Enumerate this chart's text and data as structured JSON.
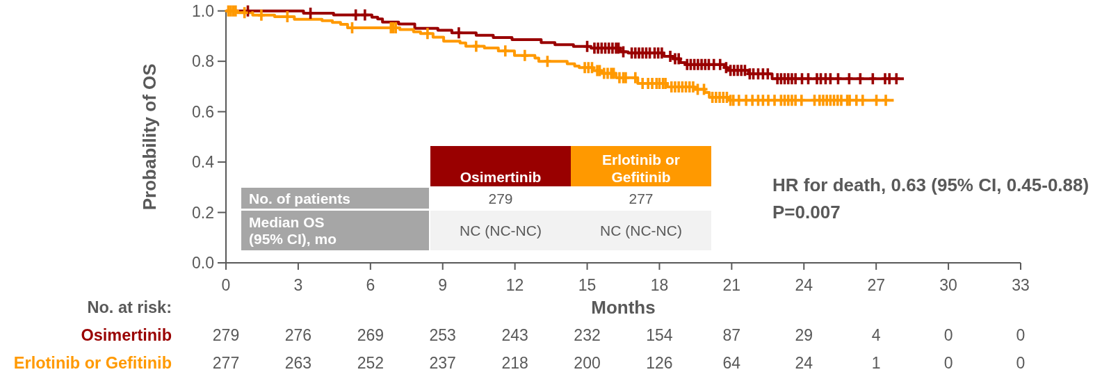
{
  "chart_data": [
    {
      "type": "step",
      "xlabel": "Months",
      "ylabel": "Probability of OS",
      "xlim": [
        0,
        33
      ],
      "xticks": [
        0,
        3,
        6,
        9,
        12,
        15,
        18,
        21,
        24,
        27,
        30,
        33
      ],
      "ylim": [
        0,
        1
      ],
      "yticks": [
        {
          "value": 0,
          "label": "0.0"
        },
        {
          "value": 0.2,
          "label": "0.2"
        },
        {
          "value": 0.4,
          "label": "0.4"
        },
        {
          "value": 0.6,
          "label": "0.6"
        },
        {
          "value": 0.8,
          "label": "0.8"
        },
        {
          "value": 1,
          "label": "1.0"
        }
      ],
      "legend": "bottom",
      "series": [
        {
          "name": "Osimertinib",
          "color": "#990000",
          "x": [
            0,
            3.22,
            4.47,
            6.06,
            6.3,
            6.5,
            7.17,
            7.84,
            8.8,
            9.38,
            10.39,
            11.1,
            11.88,
            13.09,
            13.66,
            14.43,
            15.16,
            16.39,
            16.7,
            18.19,
            18.56,
            18.87,
            19.07,
            20.7,
            20.83,
            21.7,
            22.68,
            28.15
          ],
          "values": [
            1.0,
            0.991,
            0.984,
            0.975,
            0.968,
            0.956,
            0.948,
            0.931,
            0.923,
            0.913,
            0.903,
            0.894,
            0.886,
            0.874,
            0.866,
            0.859,
            0.852,
            0.838,
            0.833,
            0.82,
            0.81,
            0.795,
            0.787,
            0.775,
            0.764,
            0.75,
            0.731,
            0.731
          ]
        },
        {
          "name": "Erlotinib or Gefitinib",
          "color": "#ff9900",
          "x": [
            0,
            0.48,
            1.11,
            2.02,
            2.84,
            3.99,
            4.42,
            4.76,
            5.05,
            7.22,
            7.79,
            8.08,
            8.6,
            9.04,
            9.72,
            9.96,
            10.73,
            11.31,
            11.98,
            12.83,
            12.99,
            14.17,
            14.48,
            14.67,
            15.25,
            15.6,
            16.2,
            17.1,
            18.33,
            19.44,
            19.87,
            20.07,
            20.9,
            27.73
          ],
          "values": [
            1.0,
            0.993,
            0.983,
            0.977,
            0.967,
            0.961,
            0.954,
            0.947,
            0.933,
            0.926,
            0.917,
            0.91,
            0.896,
            0.88,
            0.873,
            0.86,
            0.853,
            0.841,
            0.823,
            0.813,
            0.8,
            0.79,
            0.781,
            0.775,
            0.763,
            0.752,
            0.735,
            0.712,
            0.698,
            0.689,
            0.676,
            0.657,
            0.645,
            0.645
          ]
        },
        {
          "type": "scatter",
          "color": "#990000",
          "marker": "cross",
          "x": [
            0.91,
            3.51,
            5.39,
            5.77,
            9.67,
            15.0,
            15.3,
            15.45,
            15.6,
            15.75,
            15.9,
            16.05,
            16.2,
            16.3,
            16.5,
            16.85,
            17.0,
            17.15,
            17.3,
            17.45,
            17.6,
            17.8,
            17.95,
            18.1,
            18.45,
            18.65,
            18.8,
            19.15,
            19.3,
            19.45,
            19.6,
            19.75,
            19.9,
            20.05,
            20.26,
            20.52,
            20.77,
            20.95,
            21.1,
            21.25,
            21.4,
            21.55,
            21.75,
            21.9,
            22.1,
            22.3,
            22.5,
            22.9,
            23.05,
            23.2,
            23.35,
            23.5,
            23.65,
            23.92,
            24.18,
            24.54,
            24.7,
            24.9,
            25.1,
            25.42,
            25.88,
            26.34,
            26.86,
            27.37,
            27.55,
            27.84
          ],
          "values": [
            1.0,
            0.991,
            0.984,
            0.984,
            0.913,
            0.859,
            0.852,
            0.852,
            0.852,
            0.852,
            0.852,
            0.852,
            0.852,
            0.852,
            0.838,
            0.833,
            0.833,
            0.833,
            0.833,
            0.833,
            0.833,
            0.833,
            0.833,
            0.833,
            0.82,
            0.81,
            0.81,
            0.787,
            0.787,
            0.787,
            0.787,
            0.787,
            0.787,
            0.787,
            0.787,
            0.787,
            0.775,
            0.764,
            0.764,
            0.764,
            0.764,
            0.764,
            0.75,
            0.75,
            0.75,
            0.75,
            0.75,
            0.731,
            0.731,
            0.731,
            0.731,
            0.731,
            0.731,
            0.731,
            0.731,
            0.731,
            0.731,
            0.731,
            0.731,
            0.731,
            0.731,
            0.731,
            0.731,
            0.731,
            0.731,
            0.731
          ]
        },
        {
          "type": "scatter",
          "color": "#ff9900",
          "marker": "cross",
          "x": [
            0.1,
            0.2,
            0.3,
            0.4,
            0.77,
            1.47,
            2.55,
            5.24,
            6.85,
            6.95,
            7.05,
            8.37,
            10.39,
            11.6,
            12.41,
            13.35,
            14.9,
            15.05,
            15.2,
            15.42,
            15.52,
            15.7,
            15.85,
            16.0,
            16.1,
            16.34,
            16.5,
            16.6,
            17.0,
            17.3,
            17.53,
            17.7,
            17.88,
            18.0,
            18.15,
            18.25,
            18.5,
            18.65,
            18.8,
            18.95,
            19.1,
            19.25,
            19.4,
            19.59,
            19.85,
            20.2,
            20.35,
            20.5,
            20.65,
            20.8,
            20.95,
            21.07,
            21.3,
            21.6,
            21.86,
            22.1,
            22.3,
            22.52,
            22.78,
            23.05,
            23.2,
            23.35,
            23.5,
            23.65,
            23.9,
            24.44,
            24.65,
            24.8,
            24.95,
            25.1,
            25.25,
            25.4,
            25.55,
            25.8,
            25.9,
            26.18,
            26.44,
            27.01,
            27.4
          ],
          "values": [
            1.0,
            1.0,
            1.0,
            1.0,
            0.993,
            0.983,
            0.977,
            0.933,
            0.933,
            0.933,
            0.933,
            0.91,
            0.86,
            0.841,
            0.823,
            0.8,
            0.775,
            0.775,
            0.775,
            0.763,
            0.763,
            0.752,
            0.752,
            0.752,
            0.752,
            0.735,
            0.735,
            0.735,
            0.735,
            0.712,
            0.712,
            0.712,
            0.712,
            0.712,
            0.712,
            0.712,
            0.698,
            0.698,
            0.698,
            0.698,
            0.698,
            0.698,
            0.698,
            0.689,
            0.689,
            0.657,
            0.657,
            0.657,
            0.657,
            0.657,
            0.645,
            0.645,
            0.645,
            0.645,
            0.645,
            0.645,
            0.645,
            0.645,
            0.645,
            0.645,
            0.645,
            0.645,
            0.645,
            0.645,
            0.645,
            0.645,
            0.645,
            0.645,
            0.645,
            0.645,
            0.645,
            0.645,
            0.645,
            0.645,
            0.645,
            0.645,
            0.645,
            0.645,
            0.645
          ]
        }
      ],
      "annotations": [
        "No. of patients",
        "279",
        "277",
        "Median OS\n(95% CI), mo",
        "NC (NC-NC)",
        "NC (NC-NC)",
        "HR for death, 0.63 (95% CI, 0.45-0.88)",
        "P=0.007"
      ]
    },
    {
      "type": "other",
      "title": "No. at risk:",
      "series": [
        {
          "name": "Osimertinib",
          "color": "#990000"
        },
        {
          "name": "Erlotinib or Gefitinib",
          "color": "#ff9900"
        }
      ],
      "annotations": [
        "279",
        "276",
        "269",
        "253",
        "243",
        "232",
        "154",
        "87",
        "29",
        "4",
        "0",
        "0",
        "277",
        "263",
        "252",
        "237",
        "218",
        "200",
        "126",
        "64",
        "24",
        "1",
        "0",
        "0"
      ]
    }
  ]
}
